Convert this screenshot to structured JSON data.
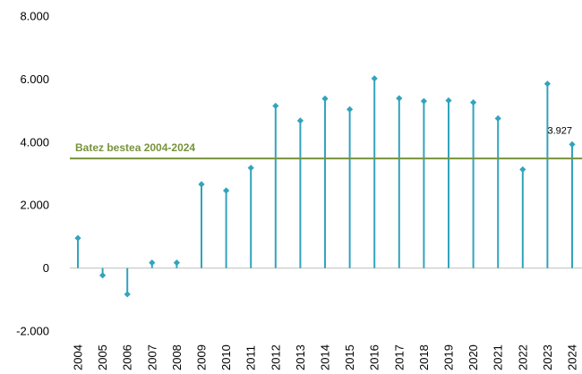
{
  "chart_data": {
    "type": "line",
    "style": "lollipop",
    "categories": [
      "2004",
      "2005",
      "2006",
      "2007",
      "2008",
      "2009",
      "2010",
      "2011",
      "2012",
      "2013",
      "2014",
      "2015",
      "2016",
      "2017",
      "2018",
      "2019",
      "2020",
      "2021",
      "2022",
      "2023",
      "2024"
    ],
    "values": [
      950,
      -230,
      -830,
      170,
      170,
      2660,
      2460,
      3180,
      5150,
      4680,
      5380,
      5040,
      6020,
      5390,
      5300,
      5320,
      5260,
      4750,
      3130,
      5850,
      3927
    ],
    "ylim": [
      -2000,
      8000
    ],
    "yticks": [
      -2000,
      0,
      2000,
      4000,
      6000,
      8000
    ],
    "ytick_labels": [
      "-2.000",
      "0",
      "2.000",
      "4.000",
      "6.000",
      "8.000"
    ],
    "reference_line": {
      "value": 3480,
      "label": "Batez bestea 2004-2024",
      "color": "#77933c"
    },
    "data_labels": [
      {
        "category": "2024",
        "text": "3.927"
      }
    ],
    "series_color": "#31a4bd",
    "grid": false,
    "legend": "none"
  }
}
